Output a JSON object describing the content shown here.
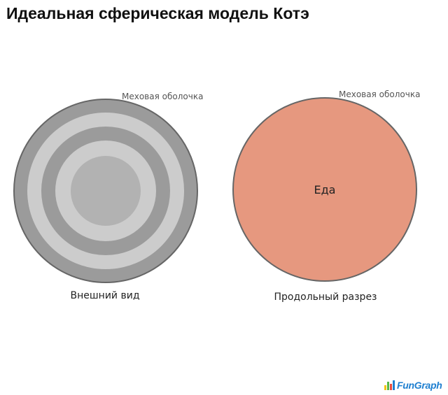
{
  "title": "Идеальная сферическая модель Котэ",
  "left_figure": {
    "top_label": "Меховая оболочка",
    "bottom_label": "Внешний вид",
    "colors": {
      "outline": "#666666",
      "ring_dark": "#9b9b9b",
      "ring_light": "#cccccc",
      "core": "#b2b2b2"
    }
  },
  "right_figure": {
    "top_label": "Меховая оболочка",
    "center_label": "Еда",
    "bottom_label": "Продольный разрез",
    "colors": {
      "outline": "#666666",
      "fill": "#e6987f"
    }
  },
  "logo": {
    "text": "FunGraph",
    "bar_colors": [
      "#f2c416",
      "#58b947",
      "#e84c3d",
      "#1e7fd0"
    ]
  }
}
